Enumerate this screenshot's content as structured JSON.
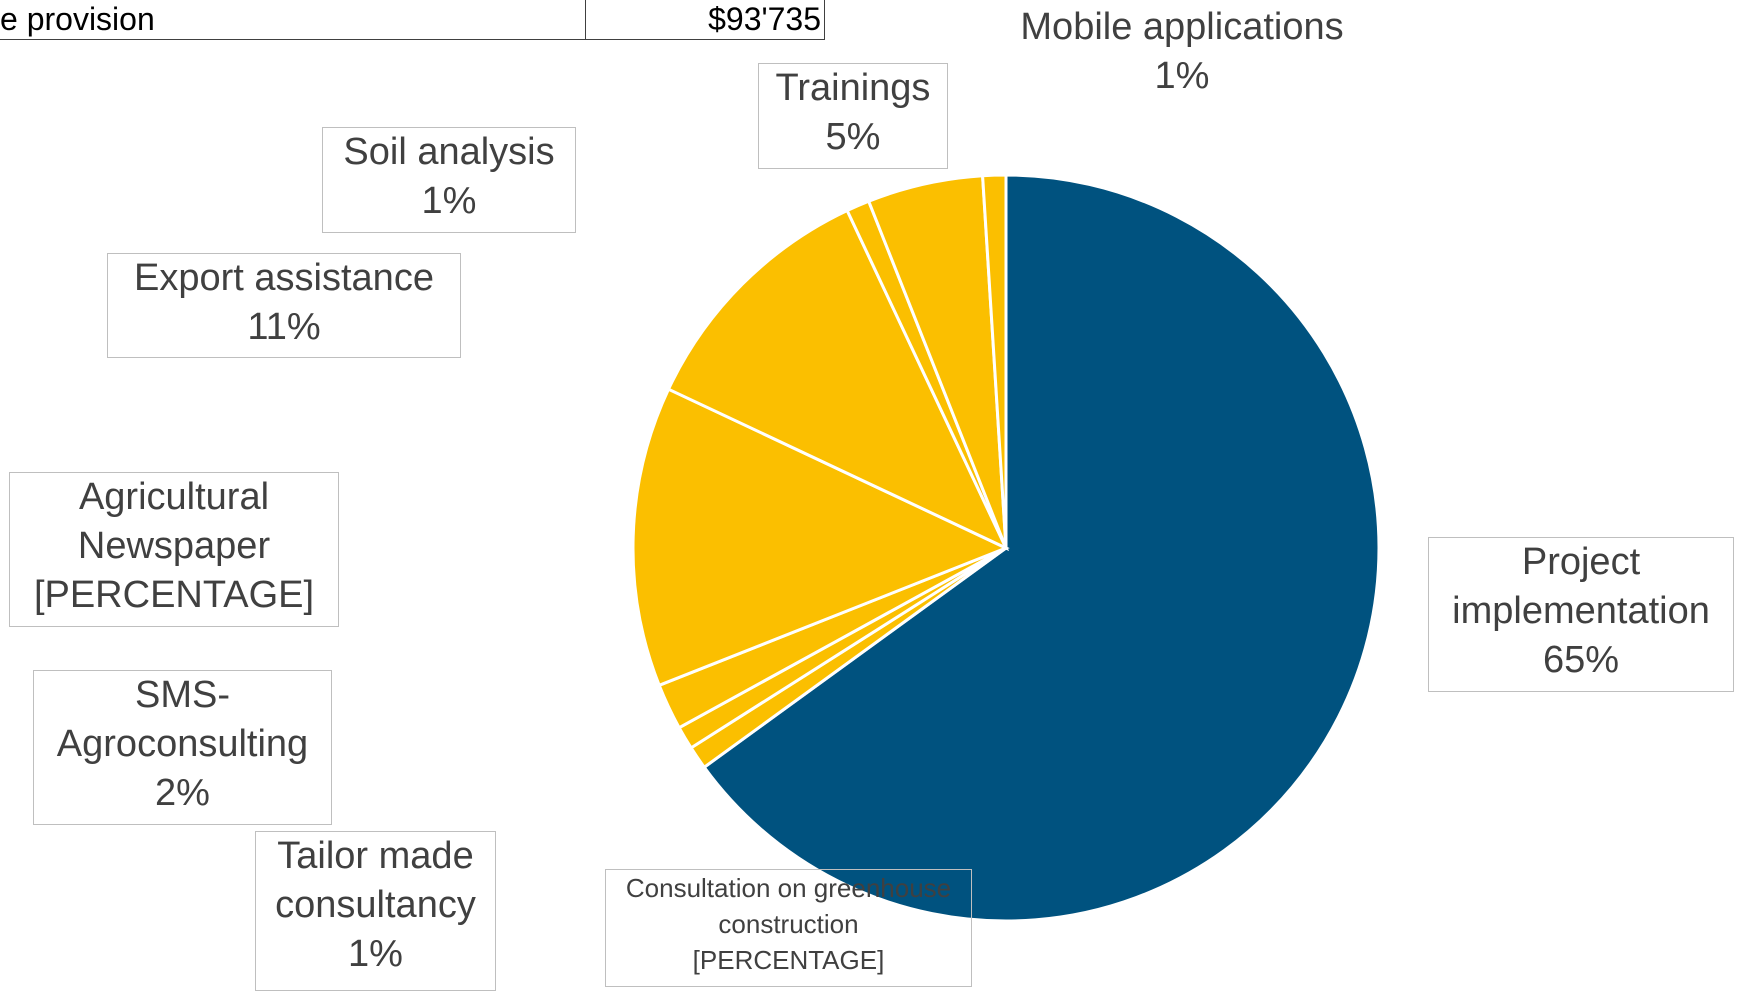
{
  "table": {
    "rows": [
      [
        "e provision",
        "$93'735"
      ]
    ]
  },
  "chart_data": {
    "type": "pie",
    "categories": [
      "Project implementation",
      "Consultation on greenhouse construction",
      "Tailor made consultancy",
      "SMS-Agroconsulting",
      "Agricultural Newspaper",
      "Export assistance",
      "Soil analysis",
      "Trainings",
      "Mobile applications"
    ],
    "values": [
      65,
      1,
      1,
      2,
      13,
      11,
      1,
      5,
      1
    ],
    "value_labels": [
      "65%",
      "[PERCENTAGE]",
      "1%",
      "2%",
      "[PERCENTAGE]",
      "11%",
      "1%",
      "5%",
      "1%"
    ],
    "colors": [
      "#00527f",
      "#fbbf00",
      "#fbbf00",
      "#fbbf00",
      "#fbbf00",
      "#fbbf00",
      "#fbbf00",
      "#fbbf00",
      "#fbbf00"
    ]
  }
}
